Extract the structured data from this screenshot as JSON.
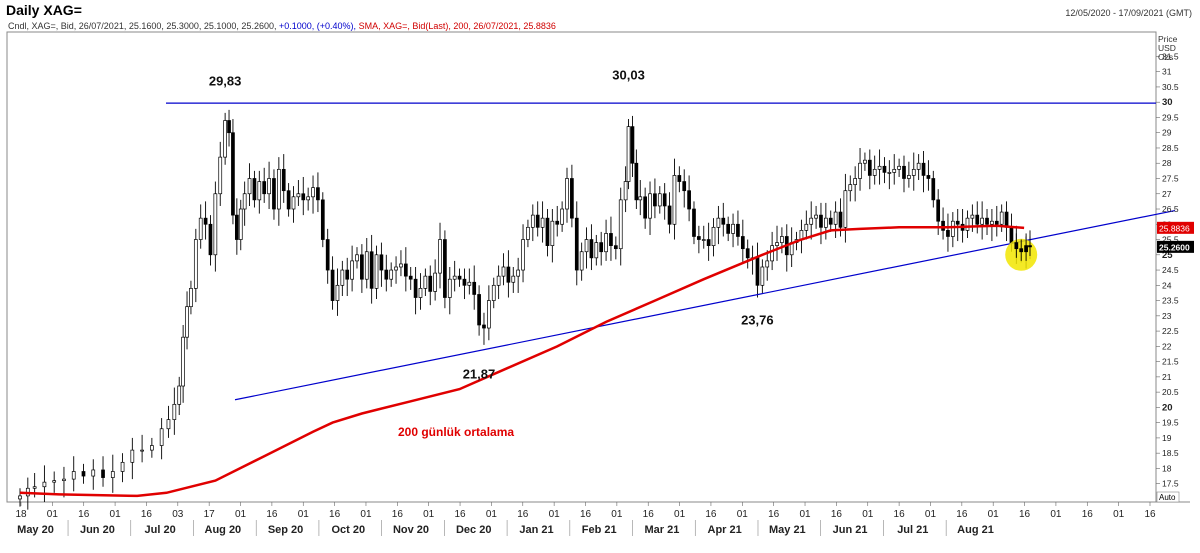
{
  "header": {
    "title": "Daily XAG=",
    "date_range": "12/05/2020 - 17/09/2021 (GMT)",
    "legend_main": "Cndl, XAG=, Bid, 26/07/2021, 25.1600, 25.3000, 25.1000, 25.2600,",
    "legend_change": "+0.1000, (+0.40%),",
    "legend_sma": "SMA, XAG=, Bid(Last),  200, 26/07/2021, 25.8836"
  },
  "axis": {
    "price_header": [
      "Price",
      "USD",
      "Ozs"
    ],
    "auto_label": "Auto",
    "last_price_label": "25.2600",
    "sma_label": "25.8836"
  },
  "colors": {
    "candles": "#000000",
    "sma": "#e00000",
    "trendline": "#0000cc",
    "highlight": "#f2e600"
  },
  "annotations": {
    "high_aug": "29,83",
    "high_feb": "30,03",
    "low_nov": "21,87",
    "low_mar": "23,76",
    "sma_label": "200 günlük ortalama"
  },
  "chart_data": {
    "type": "candlestick",
    "ylim": [
      16.9,
      32.3
    ],
    "y_ticks": [
      "17.5",
      "18",
      "18.5",
      "19",
      "19.5",
      "20",
      "20.5",
      "21",
      "21.5",
      "22",
      "22.5",
      "23",
      "23.5",
      "24",
      "24.5",
      "25",
      "25.5",
      "26",
      "26.5",
      "27",
      "27.5",
      "28",
      "28.5",
      "29",
      "29.5",
      "30",
      "30.5",
      "31",
      "31.5"
    ],
    "x_day_ticks": [
      "18",
      "01",
      "16",
      "01",
      "16",
      "03",
      "17",
      "01",
      "16",
      "01",
      "16",
      "01",
      "16",
      "01",
      "16",
      "01",
      "16",
      "01",
      "16",
      "01",
      "16",
      "01",
      "16",
      "01",
      "16",
      "01",
      "16",
      "01",
      "16",
      "01",
      "16",
      "01",
      "16",
      "01",
      "16",
      "01",
      "16"
    ],
    "x_month_labels": [
      "May 20",
      "Jun 20",
      "Jul 20",
      "Aug 20",
      "Sep 20",
      "Oct 20",
      "Nov 20",
      "Dec 20",
      "Jan 21",
      "Feb 21",
      "Mar 21",
      "Apr 21",
      "May 21",
      "Jun 21",
      "Jul 21",
      "Aug 21"
    ],
    "closes": [
      [
        0,
        17.1
      ],
      [
        8,
        17.35
      ],
      [
        15,
        17.4
      ],
      [
        25,
        17.55
      ],
      [
        35,
        17.6
      ],
      [
        45,
        17.65
      ],
      [
        55,
        17.9
      ],
      [
        65,
        17.75
      ],
      [
        75,
        17.95
      ],
      [
        85,
        17.7
      ],
      [
        95,
        17.9
      ],
      [
        105,
        18.2
      ],
      [
        115,
        18.6
      ],
      [
        125,
        18.6
      ],
      [
        135,
        18.75
      ],
      [
        145,
        19.3
      ],
      [
        152,
        19.6
      ],
      [
        158,
        20.1
      ],
      [
        163,
        20.7
      ],
      [
        167,
        22.3
      ],
      [
        171,
        23.3
      ],
      [
        175,
        23.9
      ],
      [
        180,
        25.5
      ],
      [
        185,
        26.2
      ],
      [
        190,
        26.0
      ],
      [
        195,
        25.0
      ],
      [
        200,
        27.0
      ],
      [
        205,
        28.2
      ],
      [
        210,
        29.4
      ],
      [
        214,
        29.0
      ],
      [
        218,
        26.3
      ],
      [
        222,
        25.5
      ],
      [
        226,
        26.5
      ],
      [
        230,
        27.0
      ],
      [
        235,
        27.5
      ],
      [
        240,
        26.8
      ],
      [
        245,
        27.4
      ],
      [
        250,
        27.0
      ],
      [
        255,
        27.5
      ],
      [
        260,
        26.5
      ],
      [
        265,
        27.8
      ],
      [
        270,
        27.1
      ],
      [
        275,
        26.5
      ],
      [
        280,
        26.9
      ],
      [
        285,
        27.0
      ],
      [
        290,
        26.8
      ],
      [
        295,
        26.9
      ],
      [
        300,
        27.2
      ],
      [
        305,
        26.8
      ],
      [
        310,
        25.5
      ],
      [
        315,
        24.5
      ],
      [
        320,
        23.5
      ],
      [
        325,
        24.0
      ],
      [
        330,
        24.5
      ],
      [
        335,
        24.2
      ],
      [
        340,
        24.8
      ],
      [
        345,
        25.0
      ],
      [
        350,
        24.2
      ],
      [
        355,
        25.1
      ],
      [
        360,
        23.9
      ],
      [
        365,
        25.0
      ],
      [
        370,
        24.5
      ],
      [
        375,
        24.2
      ],
      [
        380,
        24.5
      ],
      [
        385,
        24.6
      ],
      [
        390,
        24.7
      ],
      [
        395,
        24.3
      ],
      [
        400,
        24.2
      ],
      [
        405,
        23.6
      ],
      [
        410,
        23.9
      ],
      [
        415,
        24.3
      ],
      [
        420,
        23.8
      ],
      [
        425,
        24.4
      ],
      [
        430,
        25.5
      ],
      [
        435,
        23.6
      ],
      [
        440,
        24.2
      ],
      [
        445,
        24.3
      ],
      [
        450,
        24.2
      ],
      [
        455,
        24.0
      ],
      [
        460,
        24.1
      ],
      [
        465,
        23.7
      ],
      [
        470,
        22.7
      ],
      [
        475,
        22.6
      ],
      [
        480,
        23.5
      ],
      [
        485,
        24.0
      ],
      [
        490,
        24.3
      ],
      [
        495,
        24.6
      ],
      [
        500,
        24.1
      ],
      [
        505,
        24.3
      ],
      [
        510,
        24.5
      ],
      [
        515,
        25.5
      ],
      [
        520,
        25.9
      ],
      [
        525,
        26.3
      ],
      [
        530,
        25.9
      ],
      [
        535,
        26.2
      ],
      [
        540,
        25.3
      ],
      [
        545,
        26.1
      ],
      [
        550,
        26.0
      ],
      [
        555,
        26.5
      ],
      [
        560,
        27.5
      ],
      [
        565,
        26.2
      ],
      [
        570,
        24.5
      ],
      [
        575,
        25.1
      ],
      [
        580,
        25.5
      ],
      [
        585,
        24.9
      ],
      [
        590,
        25.4
      ],
      [
        595,
        25.1
      ],
      [
        600,
        25.7
      ],
      [
        605,
        25.3
      ],
      [
        610,
        25.2
      ],
      [
        615,
        26.8
      ],
      [
        620,
        27.4
      ],
      [
        623,
        29.2
      ],
      [
        627,
        28.0
      ],
      [
        631,
        26.8
      ],
      [
        635,
        26.9
      ],
      [
        640,
        26.2
      ],
      [
        645,
        27.0
      ],
      [
        650,
        26.6
      ],
      [
        655,
        27.0
      ],
      [
        660,
        26.6
      ],
      [
        665,
        26.0
      ],
      [
        670,
        27.6
      ],
      [
        675,
        27.4
      ],
      [
        680,
        27.1
      ],
      [
        685,
        26.5
      ],
      [
        690,
        25.6
      ],
      [
        695,
        25.5
      ],
      [
        700,
        25.5
      ],
      [
        705,
        25.3
      ],
      [
        710,
        25.9
      ],
      [
        715,
        26.2
      ],
      [
        720,
        26.0
      ],
      [
        725,
        25.7
      ],
      [
        730,
        26.0
      ],
      [
        735,
        25.6
      ],
      [
        740,
        25.2
      ],
      [
        745,
        24.9
      ],
      [
        750,
        24.9
      ],
      [
        755,
        24.0
      ],
      [
        760,
        24.6
      ],
      [
        765,
        24.8
      ],
      [
        770,
        25.3
      ],
      [
        775,
        25.4
      ],
      [
        780,
        25.6
      ],
      [
        785,
        25.0
      ],
      [
        790,
        25.4
      ],
      [
        795,
        25.5
      ],
      [
        800,
        25.8
      ],
      [
        805,
        26.0
      ],
      [
        810,
        26.2
      ],
      [
        815,
        26.3
      ],
      [
        820,
        25.9
      ],
      [
        825,
        26.2
      ],
      [
        830,
        26.0
      ],
      [
        835,
        26.4
      ],
      [
        840,
        25.9
      ],
      [
        845,
        27.1
      ],
      [
        850,
        27.3
      ],
      [
        855,
        27.5
      ],
      [
        860,
        28.0
      ],
      [
        865,
        28.1
      ],
      [
        870,
        27.6
      ],
      [
        875,
        27.8
      ],
      [
        880,
        27.9
      ],
      [
        885,
        27.7
      ],
      [
        890,
        27.7
      ],
      [
        895,
        27.8
      ],
      [
        900,
        27.9
      ],
      [
        905,
        27.5
      ],
      [
        910,
        27.6
      ],
      [
        915,
        27.8
      ],
      [
        920,
        28.0
      ],
      [
        925,
        27.6
      ],
      [
        930,
        27.5
      ],
      [
        935,
        26.8
      ],
      [
        940,
        26.1
      ],
      [
        945,
        25.8
      ],
      [
        950,
        25.6
      ],
      [
        955,
        26.1
      ],
      [
        960,
        26.0
      ],
      [
        965,
        25.8
      ],
      [
        970,
        26.2
      ],
      [
        975,
        26.3
      ],
      [
        980,
        26.0
      ],
      [
        985,
        26.2
      ],
      [
        990,
        26.0
      ],
      [
        995,
        26.1
      ],
      [
        1000,
        26.0
      ],
      [
        1005,
        26.4
      ],
      [
        1010,
        25.9
      ],
      [
        1015,
        25.4
      ],
      [
        1020,
        25.2
      ],
      [
        1025,
        25.1
      ],
      [
        1030,
        25.3
      ],
      [
        1034,
        25.26
      ]
    ],
    "sma_200": [
      [
        0,
        17.2
      ],
      [
        40,
        17.15
      ],
      [
        120,
        17.1
      ],
      [
        150,
        17.2
      ],
      [
        200,
        17.6
      ],
      [
        250,
        18.4
      ],
      [
        300,
        19.2
      ],
      [
        320,
        19.5
      ],
      [
        350,
        19.8
      ],
      [
        400,
        20.2
      ],
      [
        450,
        20.6
      ],
      [
        500,
        21.3
      ],
      [
        550,
        22.0
      ],
      [
        600,
        22.8
      ],
      [
        650,
        23.5
      ],
      [
        700,
        24.2
      ],
      [
        760,
        25.0
      ],
      [
        800,
        25.5
      ],
      [
        830,
        25.8
      ],
      [
        860,
        25.85
      ],
      [
        900,
        25.9
      ],
      [
        950,
        25.9
      ],
      [
        1000,
        25.95
      ],
      [
        1028,
        25.88
      ]
    ],
    "trendline_top_y": 29.97,
    "trendline_support": [
      [
        235,
        20.25
      ],
      [
        1175,
        26.45
      ]
    ],
    "labels": [
      {
        "text": "29,83",
        "x": 210,
        "y": 29.83
      },
      {
        "text": "30,03",
        "x": 623,
        "y": 30.03
      },
      {
        "text": "21,87",
        "x": 475,
        "y": 21.87
      },
      {
        "text": "23,76",
        "x": 760,
        "y": 23.76
      }
    ]
  }
}
